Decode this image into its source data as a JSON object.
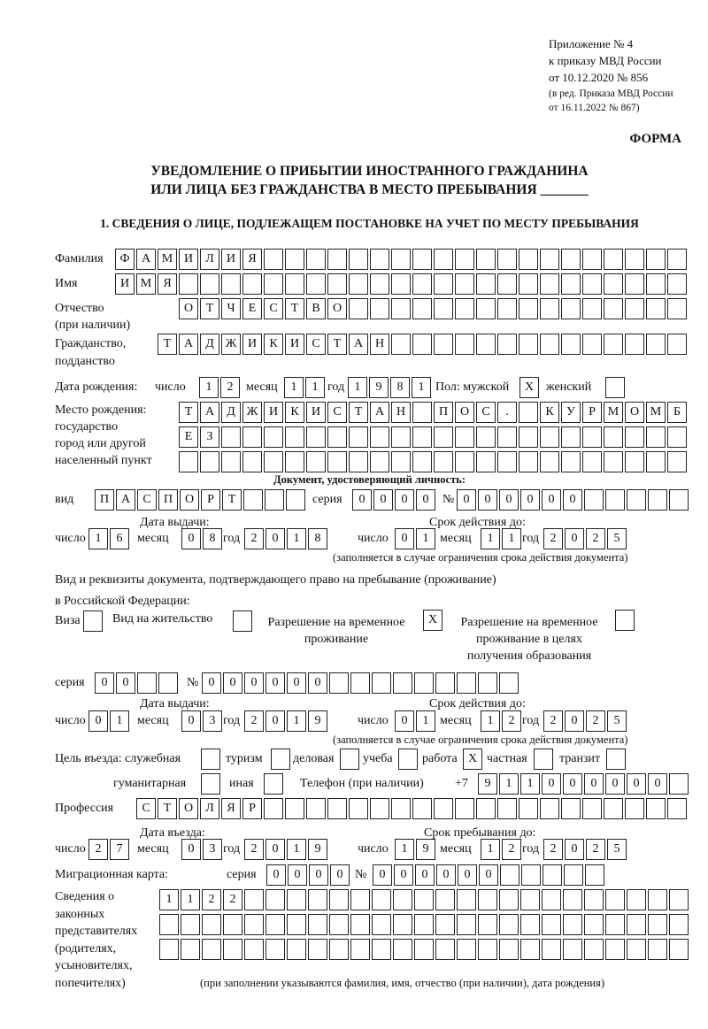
{
  "header": {
    "appendix": [
      "Приложение № 4",
      "к приказу МВД России",
      "от 10.12.2020 № 856"
    ],
    "revision": [
      "(в ред. Приказа МВД России",
      "от 16.11.2022 № 867)"
    ],
    "form_label": "ФОРМА",
    "title_line1": "УВЕДОМЛЕНИЕ О ПРИБЫТИИ ИНОСТРАННОГО ГРАЖДАНИНА",
    "title_line2": "ИЛИ ЛИЦА БЕЗ ГРАЖДАНСТВА В МЕСТО ПРЕБЫВАНИЯ _______",
    "section1": "1. СВЕДЕНИЯ О ЛИЦЕ, ПОДЛЕЖАЩЕМ ПОСТАНОВКЕ НА УЧЕТ ПО МЕСТУ ПРЕБЫВАНИЯ"
  },
  "labels": {
    "surname": "Фамилия",
    "name": "Имя",
    "patronymic": [
      "Отчество",
      "(при наличии)"
    ],
    "citizenship": [
      "Гражданство,",
      "подданство"
    ],
    "birth_date": "Дата рождения:",
    "day": "число",
    "month": "месяц",
    "year": "год",
    "sex": "Пол: мужской",
    "female": "женский",
    "birth_place": [
      "Место рождения:",
      "государство",
      "город или другой",
      "населенный пункт"
    ],
    "id_doc": "Документ, удостоверяющий личность:",
    "kind": "вид",
    "series": "серия",
    "number": "№",
    "issue_date": "Дата выдачи:",
    "valid_until": "Срок действия до:",
    "validity_note": "(заполняется в случае ограничения срока действия документа)",
    "residence_doc": [
      "Вид и реквизиты документа, подтверждающего право на пребывание (проживание)",
      "в Российской Федерации:"
    ],
    "visa": "Виза",
    "residence_permit": "Вид на жительство",
    "temp_residence": [
      "Разрешение на временное",
      "проживание"
    ],
    "temp_residence_edu": [
      "Разрешение на временное",
      "проживание в целях",
      "получения образования"
    ],
    "purpose": "Цель въезда: служебная",
    "tourism": "туризм",
    "business": "деловая",
    "study": "учеба",
    "work": "работа",
    "private": "частная",
    "transit": "транзит",
    "humanitarian": "гуманитарная",
    "other": "иная",
    "phone": "Телефон (при наличии)",
    "phone_prefix": "+7",
    "profession": "Профессия",
    "entry_date": "Дата въезда:",
    "stay_until": "Срок пребывания до:",
    "migration_card": "Миграционная карта:",
    "representatives": [
      "Сведения о",
      "законных",
      "представителях",
      "(родителях,",
      "усыновителях,",
      "попечителях)"
    ],
    "representatives_note": "(при заполнении указываются фамилия, имя, отчество (при наличии), дата рождения)"
  },
  "person": {
    "surname": "ФАМИЛИЯ",
    "name": "ИМЯ",
    "patronymic": "ОТЧЕСТВО",
    "citizenship": "ТАДЖИКИСТАН",
    "birth_day": "12",
    "birth_month": "11",
    "birth_year": "1981",
    "sex_male": "X",
    "sex_female": "",
    "birth_place_1": "ТАДЖИКИСТАН ПОС. КУРМОМБ",
    "birth_place_2": "ЕЗ",
    "birth_place_3": ""
  },
  "id_document": {
    "kind": "ПАСПОРТ",
    "series": "0000",
    "number": "000000",
    "issue_day": "16",
    "issue_month": "08",
    "issue_year": "2018",
    "valid_day": "01",
    "valid_month": "11",
    "valid_year": "2025"
  },
  "residence_document": {
    "visa": "",
    "residence_permit": "",
    "temp_residence": "X",
    "temp_residence_edu": "",
    "series": "00",
    "number": "000000",
    "issue_day": "01",
    "issue_month": "03",
    "issue_year": "2019",
    "valid_day": "01",
    "valid_month": "12",
    "valid_year": "2025"
  },
  "purpose": {
    "service": "",
    "tourism": "",
    "business": "",
    "study": "",
    "work": "X",
    "private": "",
    "transit": "",
    "humanitarian": "",
    "other": ""
  },
  "phone": "911000000",
  "profession": "СТОЛЯР",
  "entry": {
    "day": "27",
    "month": "03",
    "year": "2019",
    "stay_day": "19",
    "stay_month": "12",
    "stay_year": "2025"
  },
  "migration_card": {
    "series": "0000",
    "number": "000000"
  },
  "representatives": {
    "line1": "1122",
    "line2": "",
    "line3": ""
  }
}
